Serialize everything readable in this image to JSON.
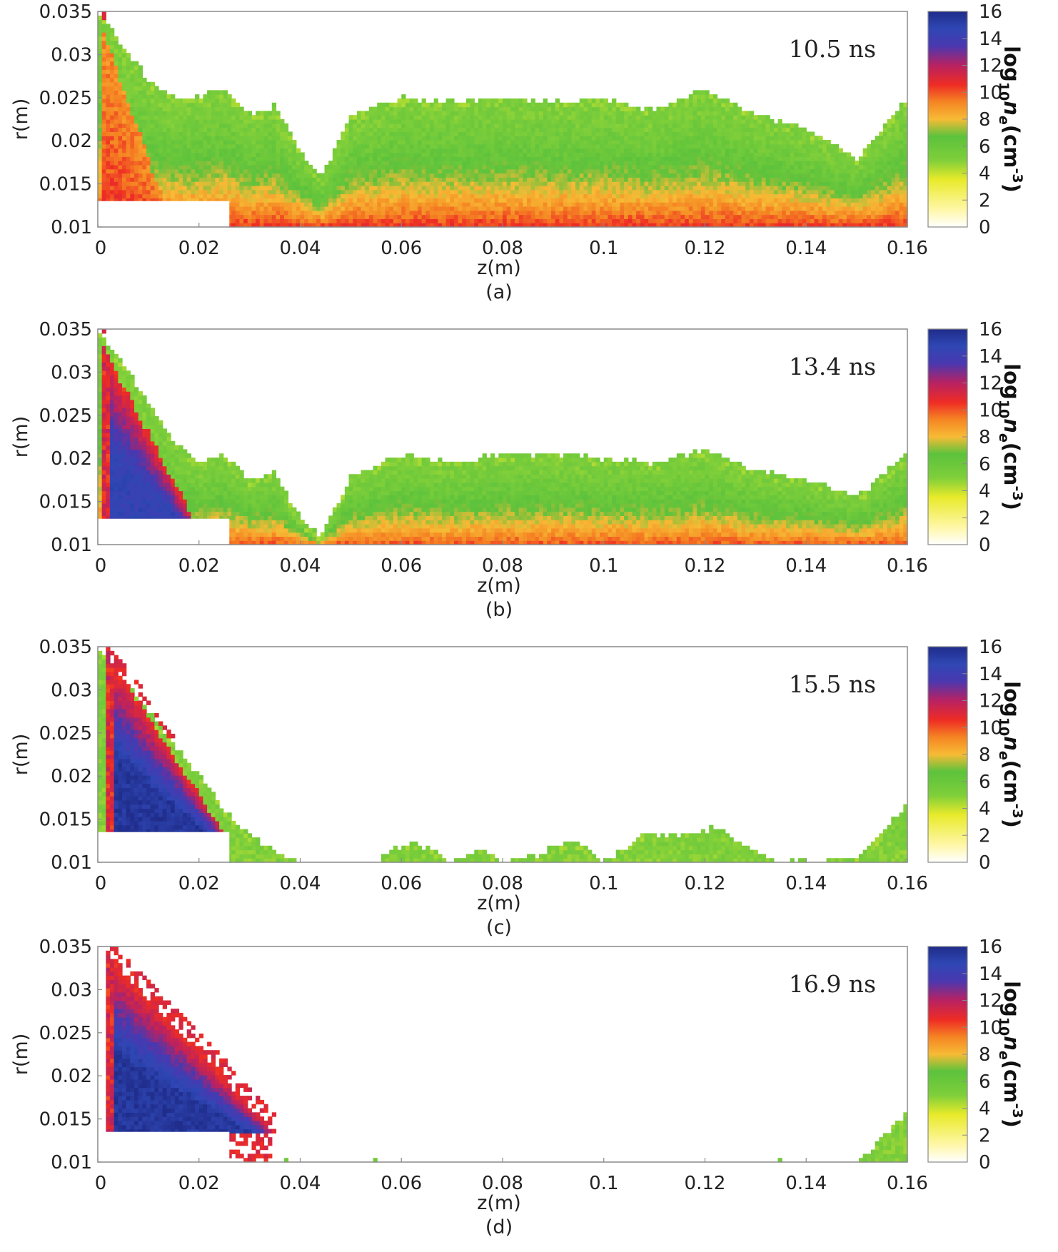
{
  "chart_data": [
    {
      "type": "heatmap",
      "panel_label": "(a)",
      "time_label": "10.5 ns",
      "xlabel": "z(m)",
      "ylabel": "r(m)",
      "xlim": [
        0,
        0.16
      ],
      "ylim": [
        0.01,
        0.035
      ],
      "xticks": [
        "0",
        "0.02",
        "0.04",
        "0.06",
        "0.08",
        "0.1",
        "0.12",
        "0.14",
        "0.16"
      ],
      "yticks": [
        "0.01",
        "0.015",
        "0.02",
        "0.025",
        "0.03",
        "0.035"
      ],
      "colorbar": {
        "label_prefix": "log",
        "label_sub": "10",
        "label_var": "n",
        "label_var_sub": "e",
        "label_unit": "(cm",
        "label_exp": "-3",
        "label_close": ")",
        "range": [
          0,
          16
        ],
        "ticks": [
          "0",
          "2",
          "4",
          "6",
          "8",
          "10",
          "12",
          "14",
          "16"
        ]
      },
      "electrode": {
        "z_end": 0.026,
        "r_top": 0.013
      },
      "field": {
        "envelope_z": [
          0,
          0.005,
          0.01,
          0.015,
          0.02,
          0.025,
          0.03,
          0.035,
          0.04,
          0.044,
          0.05,
          0.06,
          0.07,
          0.08,
          0.09,
          0.1,
          0.11,
          0.12,
          0.13,
          0.14,
          0.15,
          0.16
        ],
        "envelope_r": [
          0.035,
          0.031,
          0.027,
          0.025,
          0.025,
          0.026,
          0.023,
          0.024,
          0.019,
          0.0155,
          0.023,
          0.025,
          0.0245,
          0.025,
          0.0245,
          0.025,
          0.0235,
          0.026,
          0.023,
          0.0215,
          0.018,
          0.025
        ],
        "peak_log_ne": 10.5,
        "inner_feature": {
          "type": "fan",
          "z0": 0.001,
          "r_at_electrode": 0.013,
          "apex_r": 0.033,
          "z_bottom": 0.013,
          "peak": 10.5
        }
      }
    },
    {
      "type": "heatmap",
      "panel_label": "(b)",
      "time_label": "13.4 ns",
      "xlabel": "z(m)",
      "ylabel": "r(m)",
      "xlim": [
        0,
        0.16
      ],
      "ylim": [
        0.01,
        0.035
      ],
      "xticks": [
        "0",
        "0.02",
        "0.04",
        "0.06",
        "0.08",
        "0.1",
        "0.12",
        "0.14",
        "0.16"
      ],
      "yticks": [
        "0.01",
        "0.015",
        "0.02",
        "0.025",
        "0.03",
        "0.035"
      ],
      "colorbar": {
        "label_prefix": "log",
        "label_sub": "10",
        "label_var": "n",
        "label_var_sub": "e",
        "label_unit": "(cm",
        "label_exp": "-3",
        "label_close": ")",
        "range": [
          0,
          16
        ],
        "ticks": [
          "0",
          "2",
          "4",
          "6",
          "8",
          "10",
          "12",
          "14",
          "16"
        ]
      },
      "electrode": {
        "z_end": 0.026,
        "r_top": 0.013
      },
      "field": {
        "envelope_z": [
          0,
          0.005,
          0.01,
          0.015,
          0.02,
          0.025,
          0.03,
          0.035,
          0.04,
          0.044,
          0.05,
          0.06,
          0.07,
          0.08,
          0.09,
          0.1,
          0.11,
          0.12,
          0.13,
          0.14,
          0.15,
          0.16
        ],
        "envelope_r": [
          0.035,
          0.031,
          0.0265,
          0.022,
          0.0195,
          0.0205,
          0.0175,
          0.0185,
          0.013,
          0.011,
          0.018,
          0.0205,
          0.0195,
          0.0205,
          0.0205,
          0.02,
          0.0195,
          0.021,
          0.0185,
          0.0175,
          0.0155,
          0.0205
        ],
        "peak_log_ne": 10,
        "inner_feature": {
          "type": "wedge",
          "z0": 0.001,
          "r_at_electrode": 0.013,
          "apex_r": 0.033,
          "z_bottom": 0.019,
          "peak": 14.5
        }
      }
    },
    {
      "type": "heatmap",
      "panel_label": "(c)",
      "time_label": "15.5 ns",
      "xlabel": "z(m)",
      "ylabel": "r(m)",
      "xlim": [
        0,
        0.16
      ],
      "ylim": [
        0.01,
        0.035
      ],
      "xticks": [
        "0",
        "0.02",
        "0.04",
        "0.06",
        "0.08",
        "0.1",
        "0.12",
        "0.14",
        "0.16"
      ],
      "yticks": [
        "0.01",
        "0.015",
        "0.02",
        "0.025",
        "0.03",
        "0.035"
      ],
      "colorbar": {
        "label_prefix": "log",
        "label_sub": "10",
        "label_var": "n",
        "label_var_sub": "e",
        "label_unit": "(cm",
        "label_exp": "-3",
        "label_close": ")",
        "range": [
          0,
          16
        ],
        "ticks": [
          "0",
          "2",
          "4",
          "6",
          "8",
          "10",
          "12",
          "14",
          "16"
        ]
      },
      "electrode": {
        "z_end": 0.026,
        "r_top": 0.0135
      },
      "field": {
        "envelope_z": [
          0,
          0.01,
          0.02,
          0.026,
          0.03,
          0.036,
          0.04,
          0.055,
          0.058,
          0.062,
          0.066,
          0.07,
          0.074,
          0.076,
          0.078,
          0.08,
          0.088,
          0.092,
          0.096,
          0.1,
          0.104,
          0.108,
          0.112,
          0.118,
          0.122,
          0.126,
          0.13,
          0.134,
          0.15,
          0.155,
          0.16
        ],
        "envelope_r": [
          0.035,
          0.0275,
          0.02,
          0.0155,
          0.013,
          0.011,
          0.01,
          0.01,
          0.0115,
          0.0125,
          0.0115,
          0.01,
          0.011,
          0.0115,
          0.011,
          0.01,
          0.011,
          0.0125,
          0.012,
          0.01,
          0.0115,
          0.0135,
          0.013,
          0.0135,
          0.014,
          0.0125,
          0.0115,
          0.01,
          0.0105,
          0.0135,
          0.017
        ],
        "peak_log_ne": 5,
        "inner_feature": {
          "type": "wedge",
          "z0": 0.002,
          "r_at_electrode": 0.0135,
          "apex_r": 0.034,
          "z_bottom": 0.025,
          "peak": 15.5
        }
      }
    },
    {
      "type": "heatmap",
      "panel_label": "(d)",
      "time_label": "16.9 ns",
      "xlabel": "z(m)",
      "ylabel": "r(m)",
      "xlim": [
        0,
        0.16
      ],
      "ylim": [
        0.01,
        0.035
      ],
      "xticks": [
        "0",
        "0.02",
        "0.04",
        "0.06",
        "0.08",
        "0.1",
        "0.12",
        "0.14",
        "0.16"
      ],
      "yticks": [
        "0.01",
        "0.015",
        "0.02",
        "0.025",
        "0.03",
        "0.035"
      ],
      "colorbar": {
        "label_prefix": "log",
        "label_sub": "10",
        "label_var": "n",
        "label_var_sub": "e",
        "label_unit": "(cm",
        "label_exp": "-3",
        "label_close": ")",
        "range": [
          0,
          16
        ],
        "ticks": [
          "0",
          "2",
          "4",
          "6",
          "8",
          "10",
          "12",
          "14",
          "16"
        ]
      },
      "electrode": {
        "z_end": 0.026,
        "r_top": 0.0135
      },
      "field": {
        "envelope_z": [
          0,
          0.15,
          0.153,
          0.156,
          0.158,
          0.16
        ],
        "envelope_r": [
          0.01,
          0.01,
          0.0115,
          0.0135,
          0.0148,
          0.0158
        ],
        "peak_log_ne": 5,
        "inner_feature": {
          "type": "wedge",
          "z0": 0.002,
          "r_at_electrode": 0.0135,
          "apex_r": 0.034,
          "z_bottom": 0.035,
          "peak": 15.5
        }
      }
    }
  ]
}
